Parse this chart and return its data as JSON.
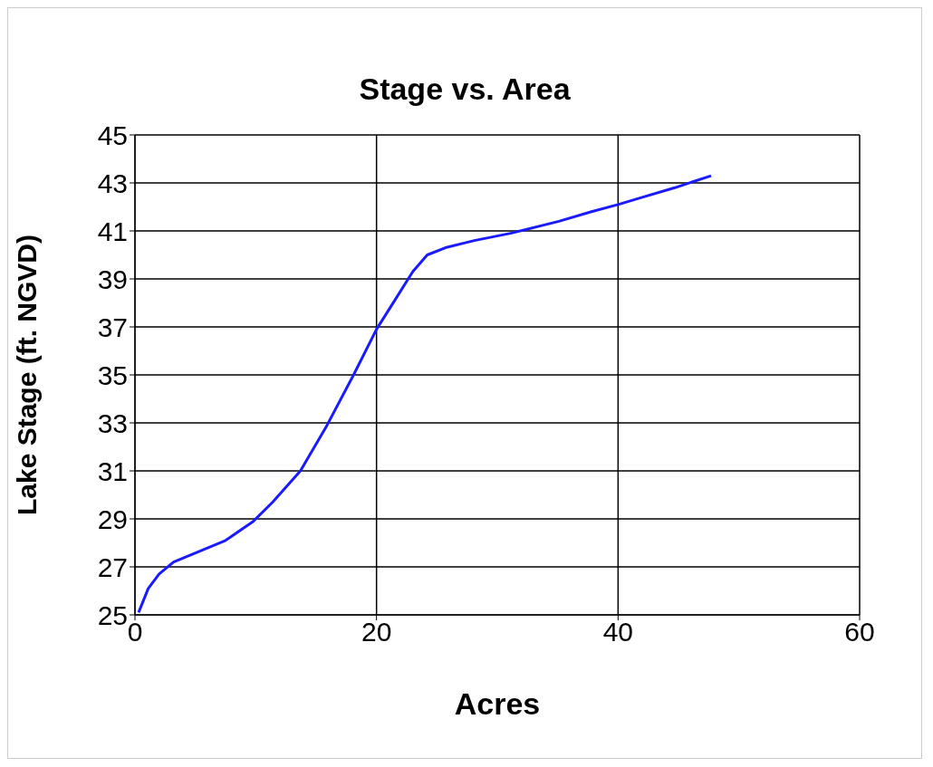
{
  "chart_data": {
    "type": "line",
    "title": "Stage vs. Area",
    "xlabel": "Acres",
    "ylabel": "Lake Stage (ft. NGVD)",
    "xlim": [
      0,
      60
    ],
    "xticks": [
      0,
      20,
      40,
      60
    ],
    "ylim": [
      25,
      45
    ],
    "yticks": [
      25,
      27,
      29,
      31,
      33,
      35,
      37,
      39,
      41,
      43,
      45
    ],
    "grid": true,
    "marker": "none",
    "line_style": "solid",
    "series": [
      {
        "color": "#1a1aff",
        "x": [
          0.3,
          1.1,
          2,
          3.2,
          5.6,
          7.5,
          9.8,
          11.4,
          13.7,
          15.9,
          18.1,
          20,
          21.5,
          23,
          24.2,
          25.7,
          28.1,
          31.1,
          35.1,
          37.8,
          40,
          42,
          44.7,
          47.7
        ],
        "values": [
          25.1,
          26.1,
          26.7,
          27.2,
          27.7,
          28.1,
          28.9,
          29.7,
          31,
          32.9,
          35,
          36.9,
          38.1,
          39.3,
          40,
          40.3,
          40.6,
          40.9,
          41.4,
          41.8,
          42.1,
          42.4,
          42.8,
          43.3
        ]
      }
    ]
  }
}
